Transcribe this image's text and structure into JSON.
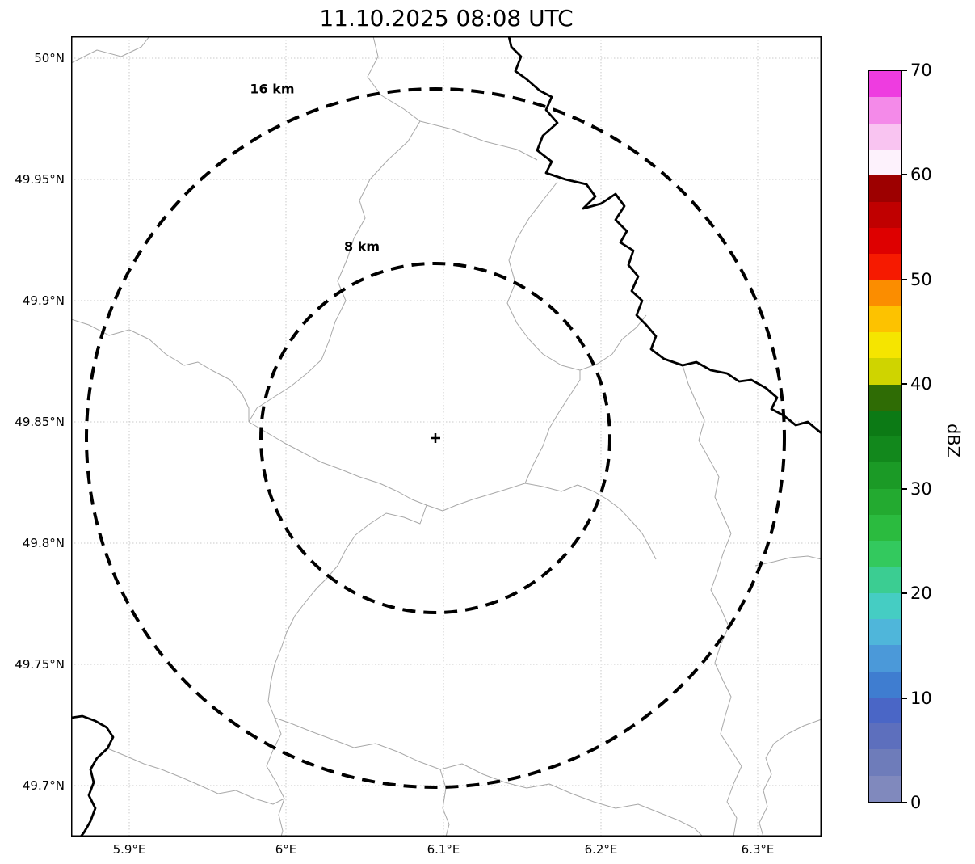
{
  "title": "11.10.2025 08:08 UTC",
  "map": {
    "y_ticks": [
      "50°N",
      "49.95°N",
      "49.9°N",
      "49.85°N",
      "49.8°N",
      "49.75°N",
      "49.7°N"
    ],
    "x_ticks": [
      "5.9°E",
      "6°E",
      "6.1°E",
      "6.2°E",
      "6.3°E"
    ],
    "rings": [
      {
        "label": "16 km",
        "radius_km": 16
      },
      {
        "label": "8 km",
        "radius_km": 8
      }
    ],
    "center_marker": "+"
  },
  "colorbar": {
    "label": "dBZ",
    "ticks": [
      "70",
      "60",
      "50",
      "40",
      "30",
      "20",
      "10",
      "0"
    ],
    "min": 0,
    "max": 70,
    "colors_bottom_to_top": [
      "#8089bd",
      "#6e7cba",
      "#5d6fbd",
      "#4a66c6",
      "#3f7dd0",
      "#4b99d9",
      "#4fb6da",
      "#45cdc3",
      "#3bcd92",
      "#33c95e",
      "#2bbb3f",
      "#23aa30",
      "#1b9a26",
      "#12881c",
      "#0c7a15",
      "#2f6c05",
      "#cfd400",
      "#f5e500",
      "#fdc200",
      "#fb8d00",
      "#f61a00",
      "#de0000",
      "#c00000",
      "#9d0000",
      "#fdf2fc",
      "#f9c4f1",
      "#f48ae9",
      "#ee3ce0"
    ]
  },
  "chart_data": {
    "type": "heatmap",
    "title": "11.10.2025 08:08 UTC",
    "x_axis": {
      "ticks": [
        "5.9°E",
        "6°E",
        "6.1°E",
        "6.2°E",
        "6.3°E"
      ],
      "range": [
        5.862,
        6.342
      ],
      "unit": "degrees east"
    },
    "y_axis": {
      "ticks": [
        "50°N",
        "49.95°N",
        "49.9°N",
        "49.85°N",
        "49.8°N",
        "49.75°N",
        "49.7°N"
      ],
      "range": [
        49.678,
        50.009
      ],
      "unit": "degrees north"
    },
    "colorbar": {
      "label": "dBZ",
      "min": 0,
      "max": 70,
      "major_tick_step": 10,
      "segment_step": 2.5
    },
    "radar_site": {
      "lon": 6.095,
      "lat": 49.843
    },
    "range_rings_km": [
      8,
      16
    ],
    "values": [],
    "grid": "dotted",
    "note": "Radar reflectivity map with no echoes shown; basemap has thin administrative boundaries and a thick national border line"
  }
}
